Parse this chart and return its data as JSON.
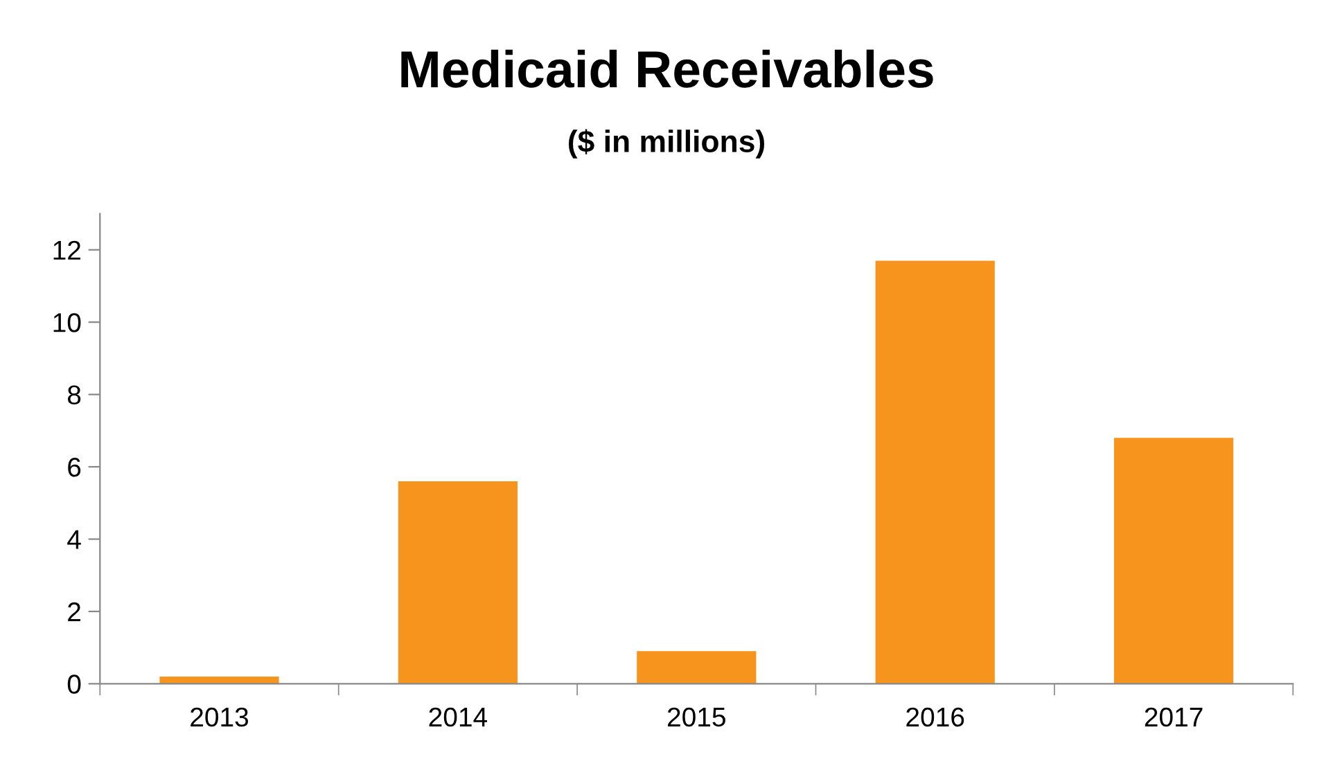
{
  "chart_data": {
    "type": "bar",
    "title": "Medicaid Receivables",
    "subtitle": "($ in millions)",
    "categories": [
      "2013",
      "2014",
      "2015",
      "2016",
      "2017"
    ],
    "values": [
      0.2,
      5.6,
      0.9,
      11.7,
      6.8
    ],
    "color": "#f7941d",
    "ylim": [
      0,
      13
    ],
    "yticks": [
      0,
      2,
      4,
      6,
      8,
      10,
      12
    ],
    "grid": false,
    "legend": false
  }
}
